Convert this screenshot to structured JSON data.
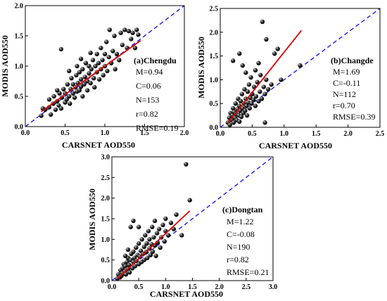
{
  "chart_data": [
    {
      "type": "scatter",
      "title": "(a)Chengdu",
      "xlabel": "CARSNET AOD550",
      "ylabel": "MODIS AOD550",
      "xlim": [
        0.0,
        2.0
      ],
      "ylim": [
        0.0,
        2.0
      ],
      "xticks": [
        "0.0",
        "0.5",
        "1.0",
        "1.5",
        "2.0"
      ],
      "yticks": [
        "0.0",
        "0.5",
        "1.0",
        "1.5",
        "2.0"
      ],
      "stats": [
        "M=0.94",
        "C=0.06",
        "N=153",
        "r=0.82",
        "RMSE=0.19"
      ],
      "fit": {
        "slope": 0.94,
        "intercept": 0.06,
        "x_range": [
          0.2,
          1.45
        ]
      },
      "one_to_one": true,
      "points": [
        [
          0.25,
          0.28
        ],
        [
          0.3,
          0.32
        ],
        [
          0.32,
          0.2
        ],
        [
          0.35,
          0.38
        ],
        [
          0.36,
          0.5
        ],
        [
          0.38,
          0.28
        ],
        [
          0.4,
          0.42
        ],
        [
          0.42,
          0.35
        ],
        [
          0.43,
          0.55
        ],
        [
          0.45,
          0.3
        ],
        [
          0.46,
          0.48
        ],
        [
          0.48,
          0.62
        ],
        [
          0.5,
          0.4
        ],
        [
          0.5,
          0.55
        ],
        [
          0.52,
          0.45
        ],
        [
          0.53,
          0.7
        ],
        [
          0.55,
          0.5
        ],
        [
          0.56,
          0.38
        ],
        [
          0.57,
          0.62
        ],
        [
          0.58,
          0.8
        ],
        [
          0.6,
          0.55
        ],
        [
          0.6,
          0.7
        ],
        [
          0.62,
          0.48
        ],
        [
          0.63,
          0.65
        ],
        [
          0.64,
          0.85
        ],
        [
          0.65,
          0.58
        ],
        [
          0.66,
          0.72
        ],
        [
          0.68,
          0.6
        ],
        [
          0.68,
          0.9
        ],
        [
          0.7,
          0.66
        ],
        [
          0.7,
          0.78
        ],
        [
          0.72,
          0.5
        ],
        [
          0.72,
          0.95
        ],
        [
          0.74,
          0.7
        ],
        [
          0.75,
          0.82
        ],
        [
          0.76,
          1.05
        ],
        [
          0.78,
          0.75
        ],
        [
          0.78,
          0.6
        ],
        [
          0.8,
          0.88
        ],
        [
          0.8,
          1.0
        ],
        [
          0.82,
          0.72
        ],
        [
          0.83,
          0.95
        ],
        [
          0.85,
          1.1
        ],
        [
          0.86,
          0.8
        ],
        [
          0.87,
          0.65
        ],
        [
          0.88,
          1.0
        ],
        [
          0.9,
          0.9
        ],
        [
          0.9,
          1.2
        ],
        [
          0.92,
          1.05
        ],
        [
          0.93,
          0.78
        ],
        [
          0.95,
          0.95
        ],
        [
          0.95,
          1.3
        ],
        [
          0.97,
          1.1
        ],
        [
          0.98,
          0.85
        ],
        [
          1.0,
          1.0
        ],
        [
          1.0,
          1.2
        ],
        [
          1.02,
          1.4
        ],
        [
          1.03,
          0.92
        ],
        [
          1.05,
          1.15
        ],
        [
          1.06,
          1.6
        ],
        [
          1.08,
          1.05
        ],
        [
          1.1,
          1.25
        ],
        [
          1.12,
          1.5
        ],
        [
          1.13,
          0.95
        ],
        [
          1.15,
          1.2
        ],
        [
          1.18,
          1.1
        ],
        [
          1.2,
          1.55
        ],
        [
          1.22,
          1.35
        ],
        [
          1.25,
          1.6
        ],
        [
          1.28,
          1.3
        ],
        [
          1.3,
          1.58
        ],
        [
          1.33,
          1.45
        ],
        [
          1.35,
          1.55
        ],
        [
          1.38,
          1.3
        ],
        [
          1.4,
          1.6
        ],
        [
          1.42,
          1.52
        ],
        [
          0.45,
          1.28
        ],
        [
          0.2,
          0.18
        ],
        [
          0.22,
          0.3
        ],
        [
          0.3,
          0.45
        ],
        [
          0.4,
          0.6
        ],
        [
          0.55,
          0.92
        ],
        [
          0.65,
          1.0
        ],
        [
          0.7,
          1.12
        ],
        [
          0.82,
          1.22
        ]
      ]
    },
    {
      "type": "scatter",
      "title": "(b)Changde",
      "xlabel": "CARSNET AOD550",
      "ylabel": "MODIS AOD550",
      "xlim": [
        0.0,
        2.5
      ],
      "ylim": [
        0.0,
        2.5
      ],
      "xticks": [
        "0.0",
        "0.5",
        "1.0",
        "1.5",
        "2.0",
        "2.5"
      ],
      "yticks": [
        "0.0",
        "0.5",
        "1.0",
        "1.5",
        "2.0",
        "2.5"
      ],
      "stats": [
        "M=1.69",
        "C=-0.11",
        "N=112",
        "r=0.70",
        "RMSE=0.39"
      ],
      "fit": {
        "slope": 1.69,
        "intercept": -0.11,
        "x_range": [
          0.12,
          1.27
        ]
      },
      "one_to_one": true,
      "points": [
        [
          0.12,
          0.1
        ],
        [
          0.14,
          0.2
        ],
        [
          0.15,
          0.05
        ],
        [
          0.16,
          0.3
        ],
        [
          0.18,
          0.15
        ],
        [
          0.19,
          0.25
        ],
        [
          0.2,
          0.4
        ],
        [
          0.21,
          0.1
        ],
        [
          0.22,
          0.32
        ],
        [
          0.23,
          0.2
        ],
        [
          0.24,
          0.5
        ],
        [
          0.25,
          0.28
        ],
        [
          0.26,
          0.15
        ],
        [
          0.27,
          0.38
        ],
        [
          0.28,
          0.6
        ],
        [
          0.29,
          0.25
        ],
        [
          0.3,
          0.45
        ],
        [
          0.3,
          0.12
        ],
        [
          0.31,
          0.35
        ],
        [
          0.32,
          0.55
        ],
        [
          0.33,
          0.22
        ],
        [
          0.34,
          0.7
        ],
        [
          0.35,
          0.4
        ],
        [
          0.36,
          0.3
        ],
        [
          0.37,
          0.5
        ],
        [
          0.38,
          0.8
        ],
        [
          0.39,
          0.35
        ],
        [
          0.4,
          0.6
        ],
        [
          0.41,
          0.45
        ],
        [
          0.42,
          0.25
        ],
        [
          0.43,
          0.75
        ],
        [
          0.44,
          0.52
        ],
        [
          0.45,
          0.9
        ],
        [
          0.46,
          0.4
        ],
        [
          0.47,
          0.62
        ],
        [
          0.48,
          1.05
        ],
        [
          0.49,
          0.5
        ],
        [
          0.5,
          0.7
        ],
        [
          0.52,
          0.58
        ],
        [
          0.53,
          0.85
        ],
        [
          0.55,
          0.45
        ],
        [
          0.56,
          0.65
        ],
        [
          0.58,
          0.95
        ],
        [
          0.6,
          0.55
        ],
        [
          0.62,
          0.75
        ],
        [
          0.63,
          1.1
        ],
        [
          0.65,
          0.6
        ],
        [
          0.68,
          0.85
        ],
        [
          0.7,
          0.7
        ],
        [
          0.72,
          1.0
        ],
        [
          0.75,
          0.8
        ],
        [
          0.8,
          0.9
        ],
        [
          0.85,
          1.55
        ],
        [
          0.9,
          1.65
        ],
        [
          0.95,
          1.0
        ],
        [
          0.2,
          1.4
        ],
        [
          0.3,
          1.55
        ],
        [
          0.35,
          1.3
        ],
        [
          0.4,
          1.15
        ],
        [
          0.66,
          2.22
        ],
        [
          0.72,
          1.85
        ],
        [
          0.55,
          1.2
        ],
        [
          0.6,
          1.35
        ],
        [
          1.25,
          1.3
        ],
        [
          0.7,
          0.1
        ]
      ]
    },
    {
      "type": "scatter",
      "title": "(c)Dongtan",
      "xlabel": "CARSNET AOD550",
      "ylabel": "MODIS AOD550",
      "xlim": [
        0.0,
        3.0
      ],
      "ylim": [
        0.0,
        3.0
      ],
      "xticks": [
        "0.0",
        "0.5",
        "1.0",
        "1.5",
        "2.0",
        "2.5",
        "3.0"
      ],
      "yticks": [
        "0.0",
        "0.5",
        "1.0",
        "1.5",
        "2.0",
        "2.5",
        "3.0"
      ],
      "stats": [
        "M=1.22",
        "C=-0.08",
        "N=190",
        "r=0.82",
        "RMSE=0.21"
      ],
      "fit": {
        "slope": 1.22,
        "intercept": -0.08,
        "x_range": [
          0.1,
          1.45
        ]
      },
      "one_to_one": true,
      "points": [
        [
          0.1,
          0.05
        ],
        [
          0.12,
          0.15
        ],
        [
          0.15,
          0.08
        ],
        [
          0.16,
          0.25
        ],
        [
          0.18,
          0.12
        ],
        [
          0.2,
          0.3
        ],
        [
          0.2,
          0.18
        ],
        [
          0.22,
          0.4
        ],
        [
          0.24,
          0.22
        ],
        [
          0.25,
          0.35
        ],
        [
          0.26,
          0.15
        ],
        [
          0.28,
          0.45
        ],
        [
          0.3,
          0.28
        ],
        [
          0.3,
          0.55
        ],
        [
          0.32,
          0.38
        ],
        [
          0.33,
          0.2
        ],
        [
          0.35,
          0.5
        ],
        [
          0.36,
          0.65
        ],
        [
          0.38,
          0.3
        ],
        [
          0.4,
          0.45
        ],
        [
          0.4,
          0.7
        ],
        [
          0.42,
          0.55
        ],
        [
          0.43,
          0.35
        ],
        [
          0.45,
          0.8
        ],
        [
          0.46,
          0.48
        ],
        [
          0.48,
          0.62
        ],
        [
          0.5,
          0.4
        ],
        [
          0.5,
          0.9
        ],
        [
          0.52,
          0.58
        ],
        [
          0.54,
          0.72
        ],
        [
          0.55,
          0.45
        ],
        [
          0.56,
          1.0
        ],
        [
          0.58,
          0.65
        ],
        [
          0.6,
          0.82
        ],
        [
          0.6,
          0.5
        ],
        [
          0.62,
          1.1
        ],
        [
          0.64,
          0.7
        ],
        [
          0.65,
          0.9
        ],
        [
          0.66,
          0.55
        ],
        [
          0.68,
          1.2
        ],
        [
          0.7,
          0.78
        ],
        [
          0.7,
          1.0
        ],
        [
          0.72,
          0.62
        ],
        [
          0.74,
          0.88
        ],
        [
          0.75,
          1.3
        ],
        [
          0.76,
          0.7
        ],
        [
          0.78,
          1.05
        ],
        [
          0.8,
          0.85
        ],
        [
          0.8,
          1.45
        ],
        [
          0.82,
          0.6
        ],
        [
          0.84,
          1.15
        ],
        [
          0.85,
          0.92
        ],
        [
          0.88,
          1.25
        ],
        [
          0.9,
          0.8
        ],
        [
          0.92,
          1.05
        ],
        [
          0.95,
          1.35
        ],
        [
          0.98,
          0.95
        ],
        [
          1.0,
          1.2
        ],
        [
          1.0,
          1.5
        ],
        [
          1.05,
          1.1
        ],
        [
          1.1,
          1.4
        ],
        [
          1.15,
          1.25
        ],
        [
          1.2,
          1.6
        ],
        [
          1.3,
          1.1
        ],
        [
          0.35,
          1.3
        ],
        [
          0.4,
          1.45
        ],
        [
          0.5,
          1.3
        ],
        [
          0.25,
          0.6
        ],
        [
          0.3,
          0.75
        ],
        [
          1.38,
          2.82
        ],
        [
          1.45,
          1.95
        ]
      ]
    }
  ]
}
